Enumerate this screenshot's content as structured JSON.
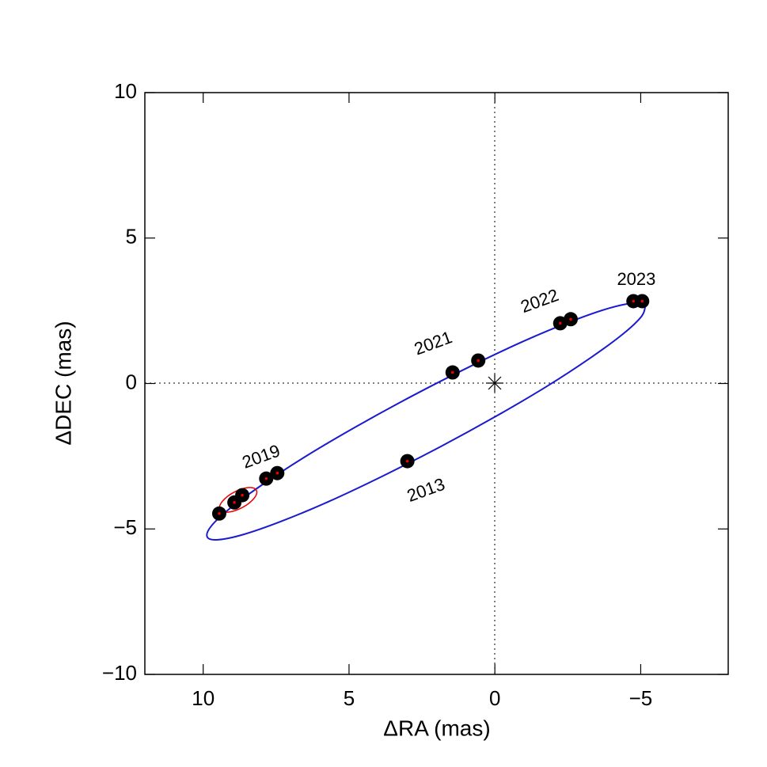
{
  "chart_data": {
    "type": "scatter",
    "x_label": "ΔRA (mas)",
    "y_label": "ΔDEC (mas)",
    "xlim": [
      12,
      -8
    ],
    "ylim": [
      -10,
      10
    ],
    "xticks": [
      10,
      5,
      0,
      {
        "value": -5,
        "label": "−5"
      }
    ],
    "yticks": [
      {
        "value": -10,
        "label": "−10"
      },
      {
        "value": -5,
        "label": "−5"
      },
      0,
      5,
      10
    ],
    "orbit": {
      "color": "#1a1ad0",
      "x": [
        -5.16,
        -4.79,
        -3.92,
        -2.63,
        -1.0,
        0.86,
        2.82,
        4.75,
        6.51,
        7.99,
        9.09,
        9.73,
        9.86,
        9.49,
        8.62,
        7.33,
        5.7,
        3.84,
        1.88,
        -0.05,
        -1.81,
        -3.29,
        -4.39,
        -5.03,
        -5.16
      ],
      "y": [
        2.68,
        2.77,
        2.59,
        2.14,
        1.46,
        0.58,
        -0.42,
        -1.48,
        -2.52,
        -3.49,
        -4.3,
        -4.91,
        -5.28,
        -5.37,
        -5.19,
        -4.74,
        -4.06,
        -3.18,
        -2.18,
        -1.12,
        -0.08,
        0.89,
        1.7,
        2.31,
        2.68
      ]
    },
    "points": {
      "color": "#000000",
      "x": [
        9.45,
        8.93,
        8.66,
        7.84,
        7.46,
        3.0,
        1.45,
        0.57,
        -2.24,
        -2.6,
        -4.75,
        -5.05
      ],
      "y": [
        -4.47,
        -4.09,
        -3.84,
        -3.27,
        -3.08,
        -2.67,
        0.38,
        0.79,
        2.07,
        2.21,
        2.83,
        2.83
      ]
    },
    "annotations": [
      "2023",
      "2022",
      "2021",
      "2019",
      "2013"
    ]
  }
}
